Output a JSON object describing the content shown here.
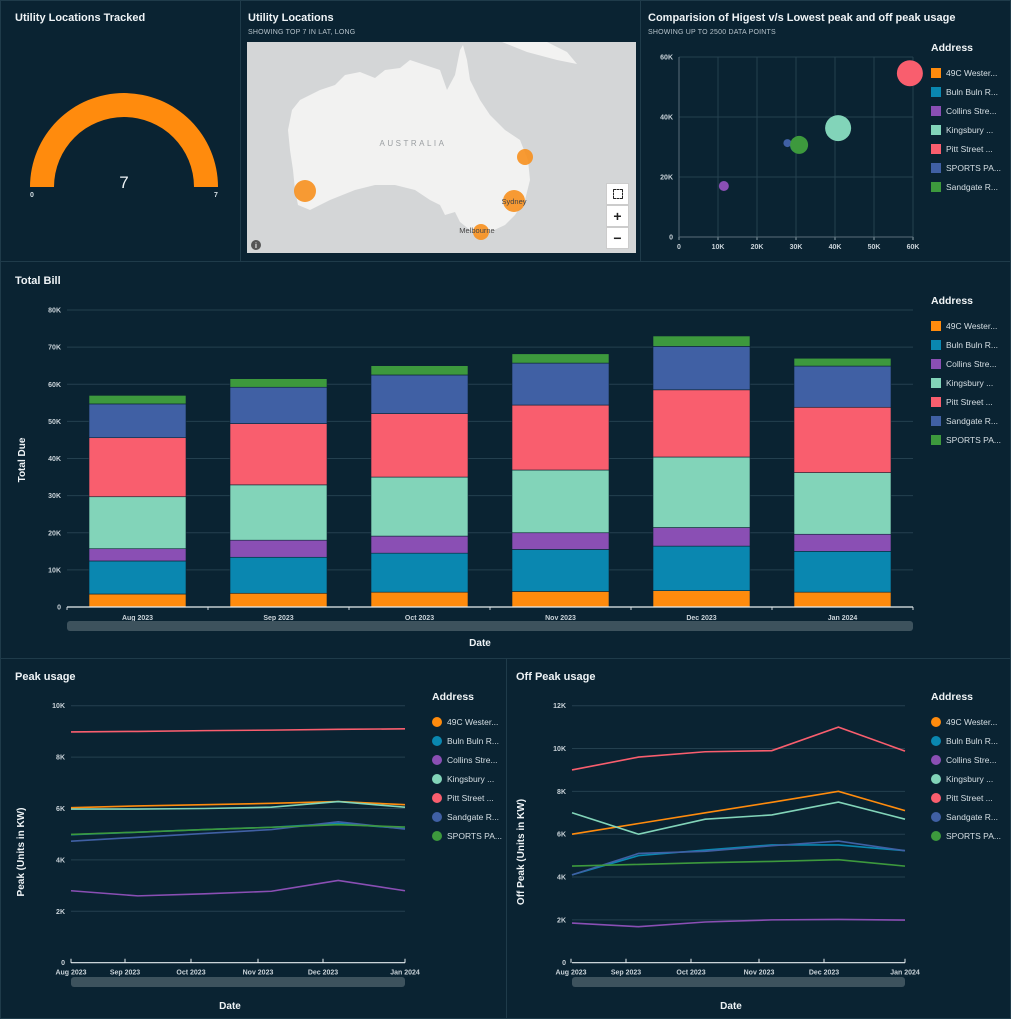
{
  "gauge": {
    "title": "Utility Locations Tracked",
    "value": "7",
    "min": "0",
    "max": "7",
    "fill_fraction": 1.0,
    "color": "#ff8b0d"
  },
  "map": {
    "title": "Utility Locations",
    "subtitle": "SHOWING TOP 7 IN LAT, LONG",
    "country_label": "AUSTRALIA",
    "city_labels": [
      "Sydney",
      "Melbourne"
    ],
    "marker_color": "#f7901e",
    "controls": {
      "fit_icon": "focus-icon",
      "zoom_in": "+",
      "zoom_out": "−",
      "info_icon": "info-icon"
    }
  },
  "scatter_panel": {
    "title": "Comparision of Higest v/s Lowest peak and off peak usage",
    "subtitle": "SHOWING UP TO 2500 DATA POINTS"
  },
  "bill_panel": {
    "title": "Total Bill"
  },
  "peak_panel": {
    "title": "Peak usage"
  },
  "offpeak_panel": {
    "title": "Off Peak usage"
  },
  "chart_data": [
    {
      "type": "scatter",
      "legend_title": "Address",
      "legend_position": "right",
      "xlim": [
        0,
        60000
      ],
      "ylim": [
        0,
        60000
      ],
      "x_ticks": [
        "0",
        "10K",
        "20K",
        "30K",
        "40K",
        "50K",
        "60K"
      ],
      "y_ticks": [
        "0",
        "20K",
        "40K",
        "60K"
      ],
      "grid": true,
      "series": [
        {
          "name": "49C Wester...",
          "color": "#ff8b0d",
          "x": null,
          "y": null
        },
        {
          "name": "Buln Buln R...",
          "color": "#0a87b0",
          "x": 30300,
          "y": 30400
        },
        {
          "name": "Collins Stre...",
          "color": "#8a4fb4",
          "x": 11500,
          "y": 17000
        },
        {
          "name": "Kingsbury ...",
          "color": "#82d4b9",
          "x": 40800,
          "y": 36300
        },
        {
          "name": "Pitt Street ...",
          "color": "#f95e6e",
          "x": 59200,
          "y": 54600
        },
        {
          "name": "SPORTS PA...",
          "color": "#4060a4",
          "x": 27800,
          "y": 31300
        },
        {
          "name": "Sandgate R...",
          "color": "#3d993d",
          "x": 30800,
          "y": 30700
        }
      ]
    },
    {
      "type": "bar",
      "stacked": true,
      "legend_title": "Address",
      "legend_position": "right",
      "xlabel": "Date",
      "ylabel": "Total Due",
      "ylim": [
        0,
        80000
      ],
      "y_ticks": [
        "0",
        "10K",
        "20K",
        "30K",
        "40K",
        "50K",
        "60K",
        "70K",
        "80K"
      ],
      "grid": true,
      "categories": [
        "Aug 2023",
        "Sep 2023",
        "Oct 2023",
        "Nov 2023",
        "Dec 2023",
        "Jan 2024"
      ],
      "series": [
        {
          "name": "49C Wester...",
          "color": "#ff8b0d",
          "values": [
            3500,
            3700,
            4000,
            4200,
            4400,
            4000
          ]
        },
        {
          "name": "Buln Buln R...",
          "color": "#0a87b0",
          "values": [
            8900,
            9700,
            10500,
            11300,
            12000,
            11000
          ]
        },
        {
          "name": "Collins Stre...",
          "color": "#8a4fb4",
          "values": [
            3300,
            4600,
            4600,
            4500,
            5000,
            4600
          ]
        },
        {
          "name": "Kingsbury ...",
          "color": "#82d4b9",
          "values": [
            14000,
            14900,
            15900,
            16900,
            19000,
            16600
          ]
        },
        {
          "name": "Pitt Street ...",
          "color": "#f95e6e",
          "values": [
            15900,
            16500,
            17100,
            17500,
            18100,
            17600
          ]
        },
        {
          "name": "Sandgate R...",
          "color": "#4060a4",
          "values": [
            9100,
            9800,
            10400,
            11300,
            11700,
            11100
          ]
        },
        {
          "name": "SPORTS PA...",
          "color": "#3d993d",
          "values": [
            2300,
            2300,
            2500,
            2500,
            2800,
            2100
          ]
        }
      ]
    },
    {
      "type": "line",
      "legend_title": "Address",
      "legend_position": "right",
      "xlabel": "Date",
      "ylabel": "Peak (Units in KW)",
      "ylim": [
        0,
        10000
      ],
      "y_ticks": [
        "0",
        "2K",
        "4K",
        "6K",
        "8K",
        "10K"
      ],
      "grid": true,
      "x": [
        "Aug 2023",
        "Sep 2023",
        "Oct 2023",
        "Nov 2023",
        "Dec 2023",
        "Jan 2024"
      ],
      "series": [
        {
          "name": "49C Wester...",
          "color": "#ff8b0d",
          "values": [
            6030,
            6100,
            6150,
            6200,
            6270,
            6150
          ]
        },
        {
          "name": "Buln Buln R...",
          "color": "#0a87b0",
          "values": [
            4980,
            5080,
            5180,
            5270,
            5420,
            5220
          ]
        },
        {
          "name": "Collins Stre...",
          "color": "#8a4fb4",
          "values": [
            2800,
            2600,
            2680,
            2780,
            3200,
            2800
          ]
        },
        {
          "name": "Kingsbury ...",
          "color": "#82d4b9",
          "values": [
            5980,
            5980,
            6000,
            6050,
            6270,
            6050
          ]
        },
        {
          "name": "Pitt Street ...",
          "color": "#f95e6e",
          "values": [
            8980,
            9000,
            9030,
            9050,
            9080,
            9100
          ]
        },
        {
          "name": "Sandgate R...",
          "color": "#4060a4",
          "values": [
            4730,
            4880,
            5030,
            5180,
            5480,
            5200
          ]
        },
        {
          "name": "SPORTS PA...",
          "color": "#3d993d",
          "values": [
            4990,
            5080,
            5180,
            5270,
            5370,
            5280
          ]
        }
      ]
    },
    {
      "type": "line",
      "legend_title": "Address",
      "legend_position": "right",
      "xlabel": "Date",
      "ylabel": "Off Peak (Units in KW)",
      "ylim": [
        0,
        12000
      ],
      "y_ticks": [
        "0",
        "2K",
        "4K",
        "6K",
        "8K",
        "10K",
        "12K"
      ],
      "grid": true,
      "x": [
        "Aug 2023",
        "Sep 2023",
        "Oct 2023",
        "Nov 2023",
        "Dec 2023",
        "Jan 2024"
      ],
      "series": [
        {
          "name": "49C Wester...",
          "color": "#ff8b0d",
          "values": [
            6000,
            6500,
            7000,
            7490,
            8000,
            7100
          ]
        },
        {
          "name": "Buln Buln R...",
          "color": "#0a87b0",
          "values": [
            4100,
            5000,
            5260,
            5500,
            5500,
            5230
          ]
        },
        {
          "name": "Collins Stre...",
          "color": "#8a4fb4",
          "values": [
            1850,
            1680,
            1900,
            2000,
            2020,
            1990
          ]
        },
        {
          "name": "Kingsbury ...",
          "color": "#82d4b9",
          "values": [
            7000,
            6000,
            6700,
            6900,
            7500,
            6700
          ]
        },
        {
          "name": "Pitt Street ...",
          "color": "#f95e6e",
          "values": [
            9000,
            9600,
            9850,
            9900,
            11000,
            9880
          ]
        },
        {
          "name": "Sandgate R...",
          "color": "#4060a4",
          "values": [
            4100,
            5100,
            5200,
            5460,
            5680,
            5230
          ]
        },
        {
          "name": "SPORTS PA...",
          "color": "#3d993d",
          "values": [
            4510,
            4590,
            4670,
            4730,
            4810,
            4510
          ]
        }
      ]
    }
  ]
}
